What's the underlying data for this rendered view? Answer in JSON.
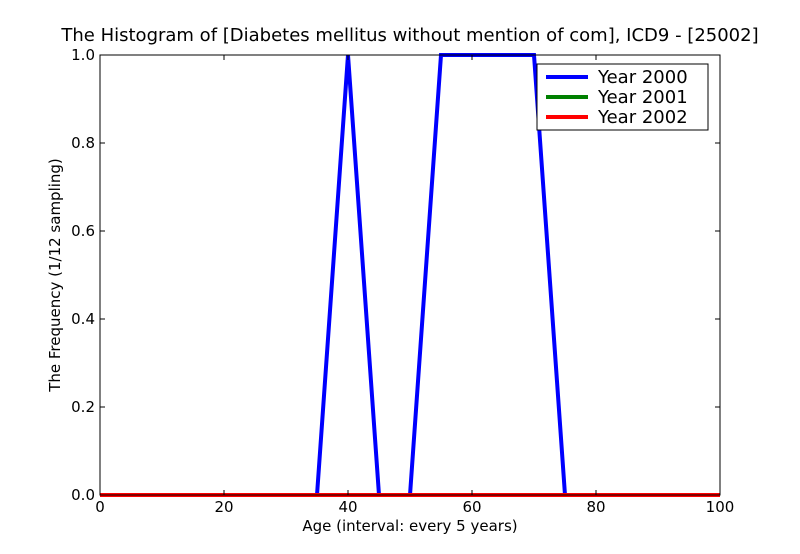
{
  "chart_data": {
    "type": "line",
    "title": "The Histogram of [Diabetes mellitus without mention of com], ICD9 - [25002]",
    "xlabel": "Age (interval: every 5 years)",
    "ylabel": "The Frequency (1/12 sampling)",
    "xlim": [
      0,
      100
    ],
    "ylim": [
      0,
      1.0
    ],
    "xticks": [
      0,
      20,
      40,
      60,
      80,
      100
    ],
    "xtick_labels": [
      "0",
      "20",
      "40",
      "60",
      "80",
      "100"
    ],
    "yticks": [
      0,
      0.2,
      0.4,
      0.6,
      0.8,
      1.0
    ],
    "ytick_labels": [
      "0.0",
      "0.2",
      "0.4",
      "0.6",
      "0.8",
      "1.0"
    ],
    "grid": false,
    "legend_placement": "top-right",
    "x": [
      0,
      5,
      10,
      15,
      20,
      25,
      30,
      35,
      40,
      45,
      50,
      55,
      60,
      65,
      70,
      75,
      80,
      85,
      90,
      95,
      100
    ],
    "series": [
      {
        "name": "Year 2000",
        "color": "#0000ff",
        "values": [
          0,
          0,
          0,
          0,
          0,
          0,
          0,
          0,
          1,
          0,
          0,
          1,
          1,
          1,
          1,
          0,
          0,
          0,
          0,
          0,
          0
        ]
      },
      {
        "name": "Year 2001",
        "color": "#008000",
        "values": [
          0,
          0,
          0,
          0,
          0,
          0,
          0,
          0,
          0,
          0,
          0,
          0,
          0,
          0,
          0,
          0,
          0,
          0,
          0,
          0,
          0
        ]
      },
      {
        "name": "Year 2002",
        "color": "#ff0000",
        "values": [
          0,
          0,
          0,
          0,
          0,
          0,
          0,
          0,
          0,
          0,
          0,
          0,
          0,
          0,
          0,
          0,
          0,
          0,
          0,
          0,
          0
        ]
      }
    ]
  }
}
